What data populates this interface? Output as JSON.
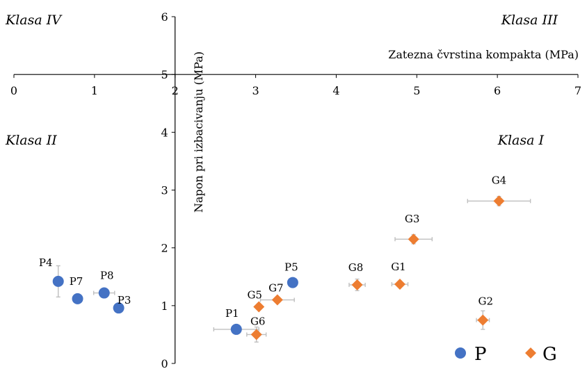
{
  "chart_data": {
    "type": "scatter",
    "xlabel": "Zatezna čvrstina kompakta (MPa)",
    "ylabel": "Napon pri izbacivanju (MPa)",
    "xlim": [
      0,
      7
    ],
    "ylim": [
      0,
      6
    ],
    "x_axis_crosses_y_at": 5,
    "y_axis_crosses_x_at": 2,
    "x_ticks": [
      "0",
      "1",
      "2",
      "3",
      "4",
      "5",
      "6",
      "7"
    ],
    "y_ticks": [
      "0",
      "1",
      "2",
      "3",
      "4",
      "5",
      "6"
    ],
    "quadrant_labels": {
      "top_left": "Klasa IV",
      "top_right": "Klasa III",
      "bottom_left": "Klasa II",
      "bottom_right": "Klasa I"
    },
    "series": [
      {
        "name": "P",
        "marker": "circle",
        "color": "#4472C4",
        "points": [
          {
            "label": "P1",
            "x": 2.76,
            "y": 0.59,
            "xerr": 0.28,
            "yerr": 0.0
          },
          {
            "label": "P3",
            "x": 1.3,
            "y": 0.96,
            "xerr": 0.0,
            "yerr": 0.0
          },
          {
            "label": "P4",
            "x": 0.55,
            "y": 1.42,
            "xerr": 0.0,
            "yerr": 0.27
          },
          {
            "label": "P5",
            "x": 3.46,
            "y": 1.4,
            "xerr": 0.0,
            "yerr": 0.0
          },
          {
            "label": "P7",
            "x": 0.79,
            "y": 1.12,
            "xerr": 0.0,
            "yerr": 0.08
          },
          {
            "label": "P8",
            "x": 1.12,
            "y": 1.22,
            "xerr": 0.13,
            "yerr": 0.0
          }
        ]
      },
      {
        "name": "G",
        "marker": "diamond",
        "color": "#ED7D31",
        "points": [
          {
            "label": "G1",
            "x": 4.79,
            "y": 1.37,
            "xerr": 0.1,
            "yerr": 0.05
          },
          {
            "label": "G2",
            "x": 5.82,
            "y": 0.75,
            "xerr": 0.08,
            "yerr": 0.16
          },
          {
            "label": "G3",
            "x": 4.96,
            "y": 2.15,
            "xerr": 0.23,
            "yerr": 0.08
          },
          {
            "label": "G4",
            "x": 6.02,
            "y": 2.81,
            "xerr": 0.39,
            "yerr": 0.08
          },
          {
            "label": "G5",
            "x": 3.04,
            "y": 0.98,
            "xerr": 0.0,
            "yerr": 0.0
          },
          {
            "label": "G6",
            "x": 3.01,
            "y": 0.5,
            "xerr": 0.12,
            "yerr": 0.13
          },
          {
            "label": "G7",
            "x": 3.27,
            "y": 1.1,
            "xerr": 0.21,
            "yerr": 0.0
          },
          {
            "label": "G8",
            "x": 4.26,
            "y": 1.36,
            "xerr": 0.1,
            "yerr": 0.1
          }
        ]
      }
    ],
    "legend": {
      "position": "bottom-right"
    },
    "grid": false,
    "errorbar_color": "#BFBFBF"
  }
}
